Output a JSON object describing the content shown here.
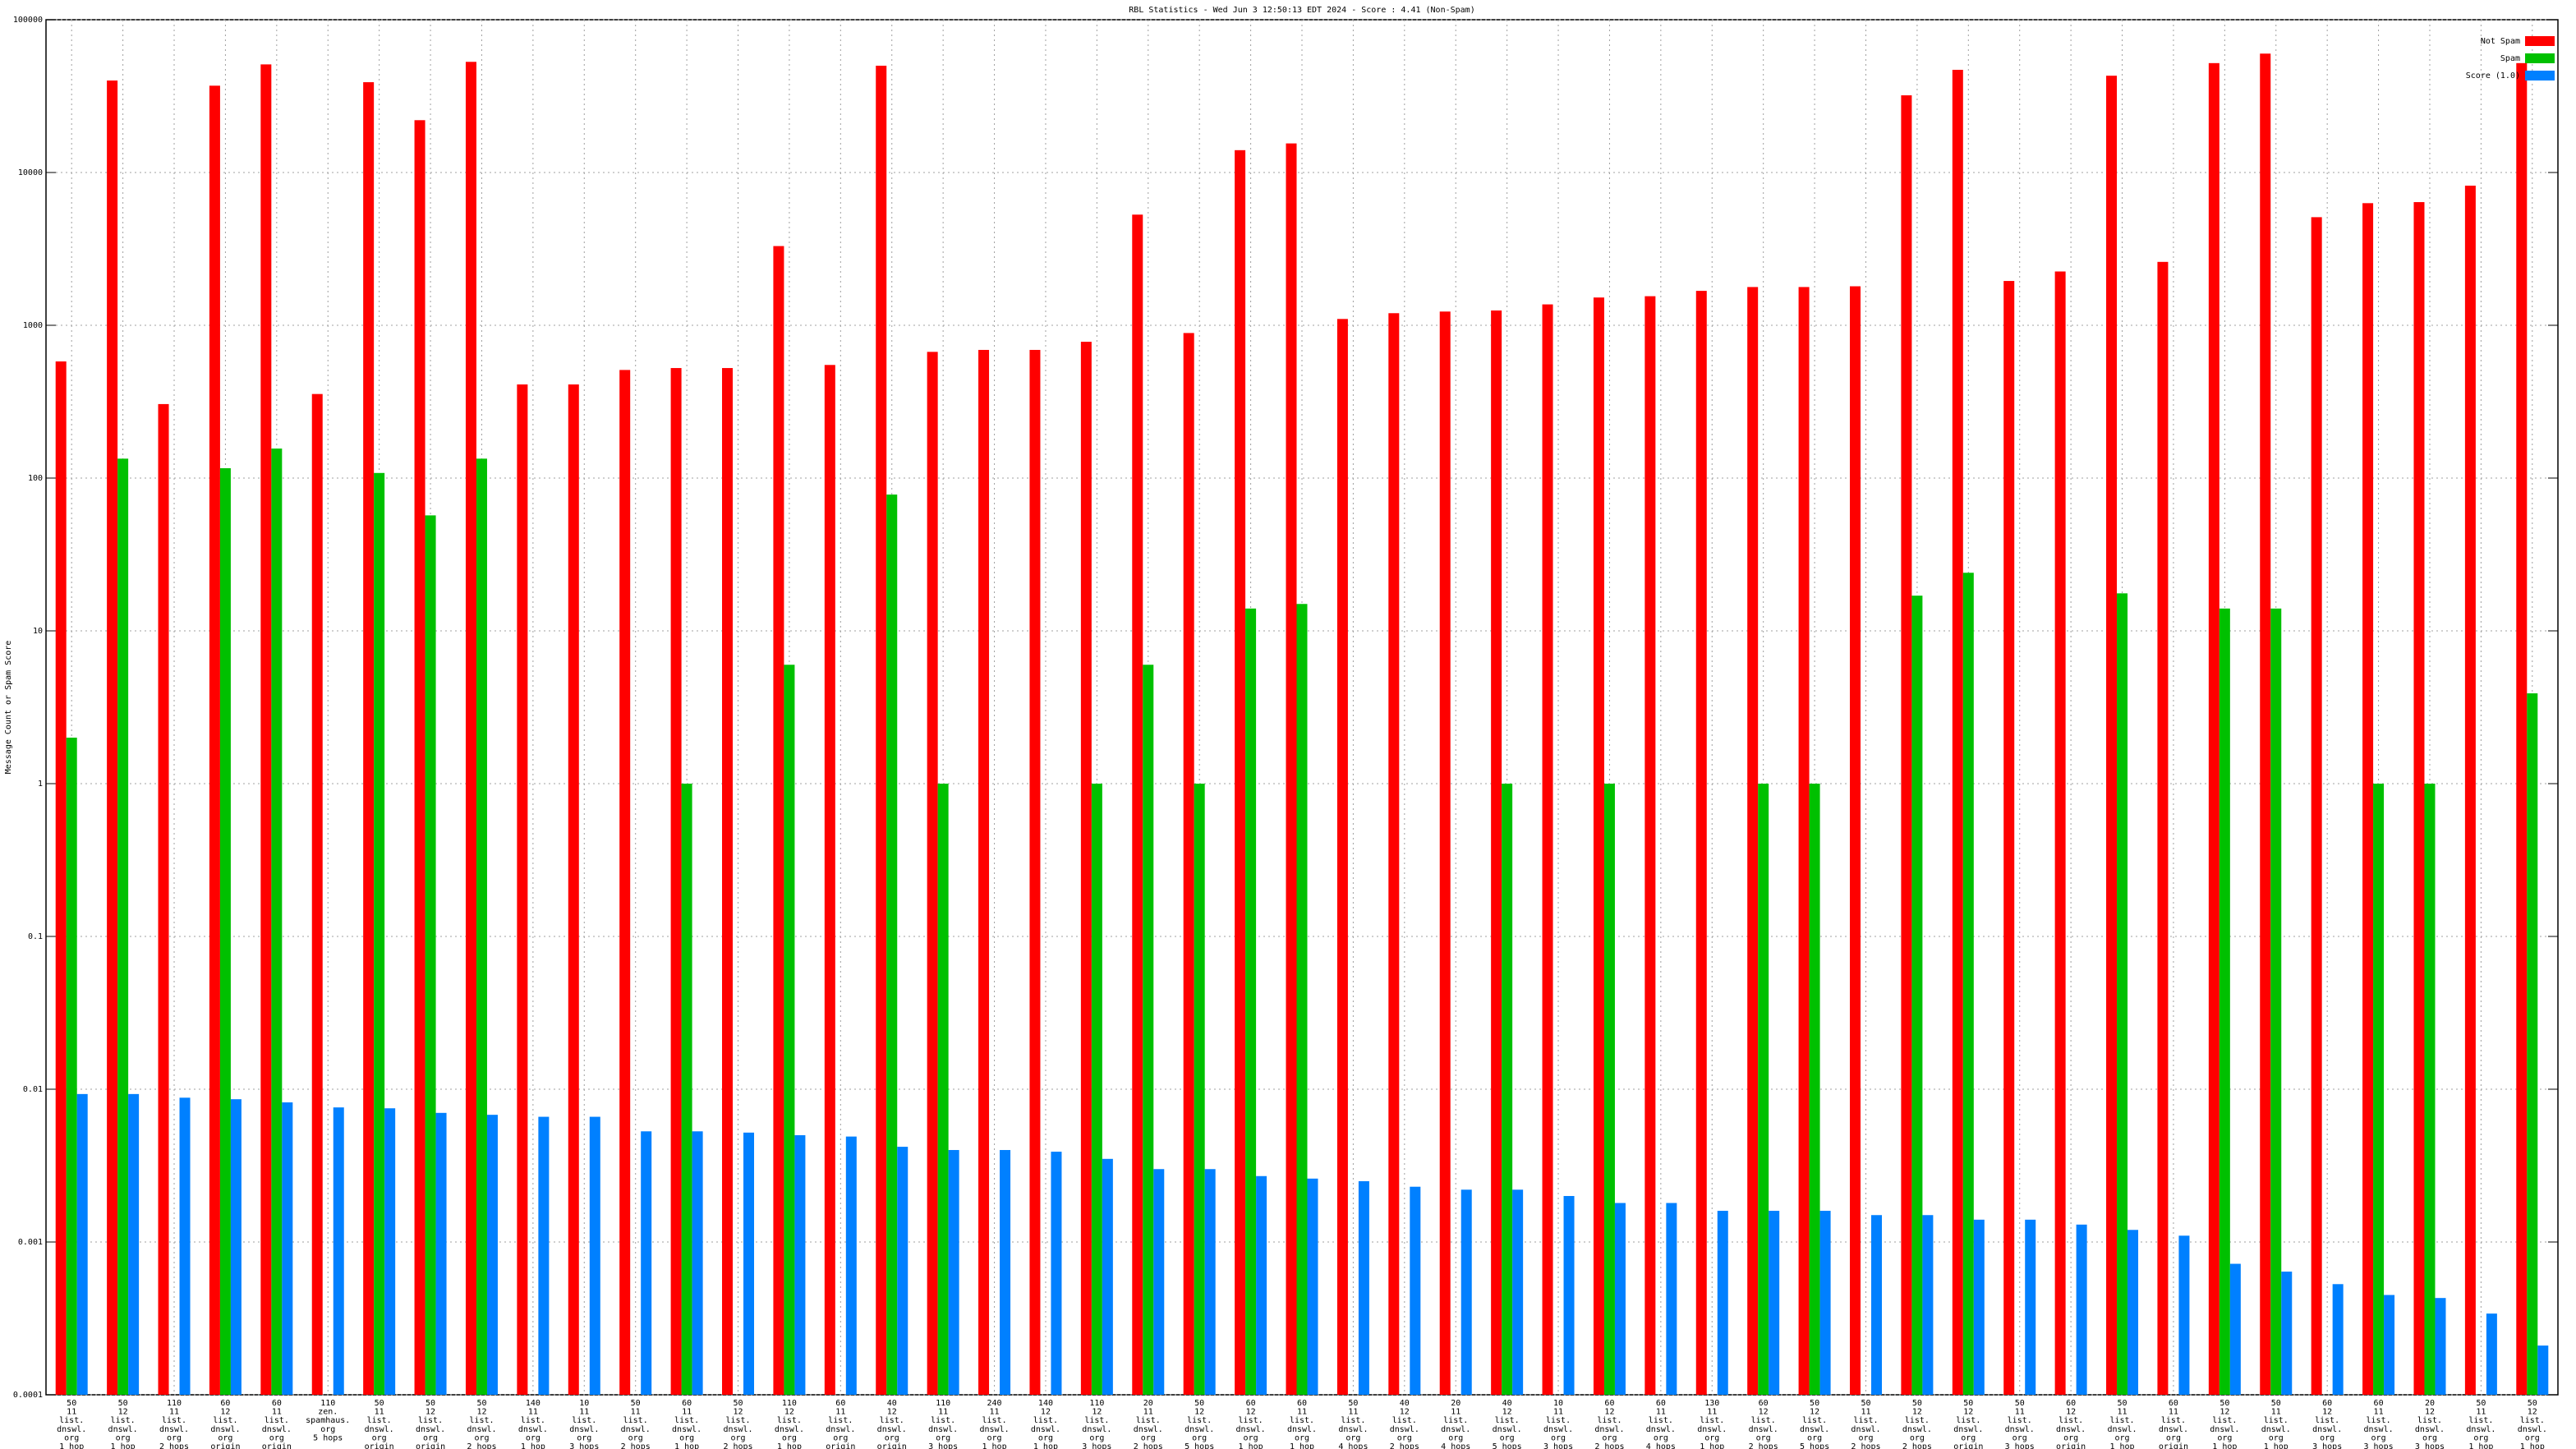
{
  "chart_data": {
    "type": "bar",
    "title": "RBL Statistics - Wed Jun  3 12:50:13 EDT 2024 - Score : 4.41 (Non-Spam)",
    "y_label": "Message Count or Spam Score",
    "log_scale": true,
    "grid": true,
    "legend": "top-right",
    "categories": [
      [
        "50",
        "11",
        "list.",
        "dnswl.",
        "org",
        "1 hop"
      ],
      [
        "50",
        "12",
        "list.",
        "dnswl.",
        "org",
        "1 hop"
      ],
      [
        "110",
        "11",
        "list.",
        "dnswl.",
        "org",
        "2 hops"
      ],
      [
        "60",
        "12",
        "list.",
        "dnswl.",
        "org",
        "origin"
      ],
      [
        "60",
        "11",
        "list.",
        "dnswl.",
        "org",
        "origin"
      ],
      [
        "110",
        "zen.",
        "spamhaus.",
        "org",
        "5 hops"
      ],
      [
        "50",
        "11",
        "list.",
        "dnswl.",
        "org",
        "origin"
      ],
      [
        "50",
        "12",
        "list.",
        "dnswl.",
        "org",
        "origin"
      ],
      [
        "50",
        "12",
        "list.",
        "dnswl.",
        "org",
        "2 hops"
      ],
      [
        "140",
        "11",
        "list.",
        "dnswl.",
        "org",
        "1 hop"
      ],
      [
        "10",
        "11",
        "list.",
        "dnswl.",
        "org",
        "3 hops"
      ],
      [
        "50",
        "11",
        "list.",
        "dnswl.",
        "org",
        "2 hops"
      ],
      [
        "60",
        "11",
        "list.",
        "dnswl.",
        "org",
        "1 hop"
      ],
      [
        "50",
        "12",
        "list.",
        "dnswl.",
        "org",
        "2 hops"
      ],
      [
        "110",
        "12",
        "list.",
        "dnswl.",
        "org",
        "1 hop"
      ],
      [
        "60",
        "11",
        "list.",
        "dnswl.",
        "org",
        "origin"
      ],
      [
        "40",
        "12",
        "list.",
        "dnswl.",
        "org",
        "origin"
      ],
      [
        "110",
        "11",
        "list.",
        "dnswl.",
        "org",
        "3 hops"
      ],
      [
        "240",
        "11",
        "list.",
        "dnswl.",
        "org",
        "1 hop"
      ],
      [
        "140",
        "12",
        "list.",
        "dnswl.",
        "org",
        "1 hop"
      ],
      [
        "110",
        "12",
        "list.",
        "dnswl.",
        "org",
        "3 hops"
      ],
      [
        "20",
        "11",
        "list.",
        "dnswl.",
        "org",
        "2 hops"
      ],
      [
        "50",
        "12",
        "list.",
        "dnswl.",
        "org",
        "5 hops"
      ],
      [
        "60",
        "12",
        "list.",
        "dnswl.",
        "org",
        "1 hop"
      ],
      [
        "60",
        "11",
        "list.",
        "dnswl.",
        "org",
        "1 hop"
      ],
      [
        "50",
        "11",
        "list.",
        "dnswl.",
        "org",
        "4 hops"
      ],
      [
        "40",
        "12",
        "list.",
        "dnswl.",
        "org",
        "2 hops"
      ],
      [
        "20",
        "11",
        "list.",
        "dnswl.",
        "org",
        "4 hops"
      ],
      [
        "40",
        "12",
        "list.",
        "dnswl.",
        "org",
        "5 hops"
      ],
      [
        "10",
        "11",
        "list.",
        "dnswl.",
        "org",
        "3 hops"
      ],
      [
        "60",
        "12",
        "list.",
        "dnswl.",
        "org",
        "2 hops"
      ],
      [
        "60",
        "11",
        "list.",
        "dnswl.",
        "org",
        "4 hops"
      ],
      [
        "130",
        "11",
        "list.",
        "dnswl.",
        "org",
        "1 hop"
      ],
      [
        "60",
        "12",
        "list.",
        "dnswl.",
        "org",
        "2 hops"
      ],
      [
        "50",
        "12",
        "list.",
        "dnswl.",
        "org",
        "5 hops"
      ],
      [
        "50",
        "11",
        "list.",
        "dnswl.",
        "org",
        "2 hops"
      ],
      [
        "50",
        "12",
        "list.",
        "dnswl.",
        "org",
        "2 hops"
      ],
      [
        "50",
        "12",
        "list.",
        "dnswl.",
        "org",
        "origin"
      ],
      [
        "50",
        "11",
        "list.",
        "dnswl.",
        "org",
        "3 hops"
      ],
      [
        "60",
        "12",
        "list.",
        "dnswl.",
        "org",
        "origin"
      ],
      [
        "50",
        "11",
        "list.",
        "dnswl.",
        "org",
        "1 hop"
      ],
      [
        "60",
        "11",
        "list.",
        "dnswl.",
        "org",
        "origin"
      ],
      [
        "50",
        "12",
        "list.",
        "dnswl.",
        "org",
        "1 hop"
      ],
      [
        "50",
        "11",
        "list.",
        "dnswl.",
        "org",
        "1 hop"
      ],
      [
        "60",
        "12",
        "list.",
        "dnswl.",
        "org",
        "3 hops"
      ],
      [
        "60",
        "11",
        "list.",
        "dnswl.",
        "org",
        "3 hops"
      ],
      [
        "20",
        "12",
        "list.",
        "dnswl.",
        "org",
        "3 hops"
      ],
      [
        "50",
        "11",
        "list.",
        "dnswl.",
        "org",
        "1 hop"
      ],
      [
        "50",
        "12",
        "list.",
        "dnswl.",
        "org",
        "1 hop"
      ]
    ],
    "series": [
      {
        "name": "Not Spam",
        "color": "#ff0000",
        "values": [
          580,
          40000,
          305,
          37000,
          51000,
          355,
          39000,
          22000,
          53000,
          410,
          410,
          510,
          525,
          525,
          3300,
          550,
          50000,
          670,
          690,
          690,
          780,
          5300,
          890,
          14000,
          15500,
          1100,
          1200,
          1230,
          1250,
          1370,
          1520,
          1550,
          1680,
          1780,
          1780,
          1800,
          32000,
          47000,
          1950,
          2250,
          43000,
          2600,
          52000,
          60000,
          5100,
          6300,
          6400,
          8200,
          52000
        ]
      },
      {
        "name": "Spam",
        "color": "#00c000",
        "values": [
          2,
          134,
          null,
          116,
          156,
          null,
          108,
          57,
          134,
          null,
          null,
          null,
          1,
          null,
          6,
          null,
          78,
          1,
          null,
          null,
          1,
          6,
          1,
          14,
          15,
          null,
          null,
          null,
          1,
          null,
          1,
          null,
          null,
          1,
          1,
          null,
          17,
          24,
          null,
          null,
          17.6,
          null,
          14,
          14,
          null,
          1,
          1,
          null,
          3.9
        ]
      },
      {
        "name": "Score (1.0)",
        "color": "#0080ff",
        "values": [
          0.0093,
          0.0093,
          0.0088,
          0.0086,
          0.0082,
          0.0076,
          0.0075,
          0.007,
          0.0068,
          0.0066,
          0.0066,
          0.0053,
          0.0053,
          0.0052,
          0.005,
          0.0049,
          0.0042,
          0.004,
          0.004,
          0.0039,
          0.0035,
          0.003,
          0.003,
          0.0027,
          0.0026,
          0.0025,
          0.0023,
          0.0022,
          0.0022,
          0.002,
          0.0018,
          0.0018,
          0.0016,
          0.0016,
          0.0016,
          0.0015,
          0.0015,
          0.0014,
          0.0014,
          0.0013,
          0.0012,
          0.0011,
          0.00072,
          0.00064,
          0.00053,
          0.00045,
          0.00043,
          0.00034,
          0.00021
        ]
      }
    ],
    "ylim": [
      0.0001,
      100000
    ],
    "yticks": [
      0.0001,
      0.001,
      0.01,
      0.1,
      1,
      10,
      100,
      1000,
      10000,
      100000
    ]
  }
}
